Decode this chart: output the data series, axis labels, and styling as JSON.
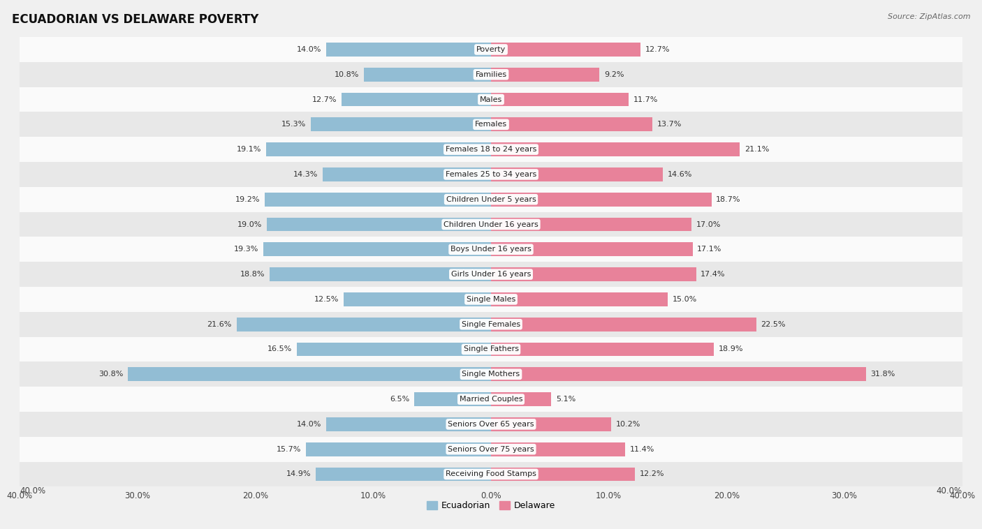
{
  "title": "ECUADORIAN VS DELAWARE POVERTY",
  "source": "Source: ZipAtlas.com",
  "categories": [
    "Poverty",
    "Families",
    "Males",
    "Females",
    "Females 18 to 24 years",
    "Females 25 to 34 years",
    "Children Under 5 years",
    "Children Under 16 years",
    "Boys Under 16 years",
    "Girls Under 16 years",
    "Single Males",
    "Single Females",
    "Single Fathers",
    "Single Mothers",
    "Married Couples",
    "Seniors Over 65 years",
    "Seniors Over 75 years",
    "Receiving Food Stamps"
  ],
  "ecuadorian": [
    14.0,
    10.8,
    12.7,
    15.3,
    19.1,
    14.3,
    19.2,
    19.0,
    19.3,
    18.8,
    12.5,
    21.6,
    16.5,
    30.8,
    6.5,
    14.0,
    15.7,
    14.9
  ],
  "delaware": [
    12.7,
    9.2,
    11.7,
    13.7,
    21.1,
    14.6,
    18.7,
    17.0,
    17.1,
    17.4,
    15.0,
    22.5,
    18.9,
    31.8,
    5.1,
    10.2,
    11.4,
    12.2
  ],
  "ecuadorian_color": "#92bdd4",
  "delaware_color": "#e8829a",
  "background_color": "#f0f0f0",
  "row_color_even": "#fafafa",
  "row_color_odd": "#e8e8e8",
  "xlim": 40.0,
  "bar_height": 0.55,
  "legend_labels": [
    "Ecuadorian",
    "Delaware"
  ]
}
